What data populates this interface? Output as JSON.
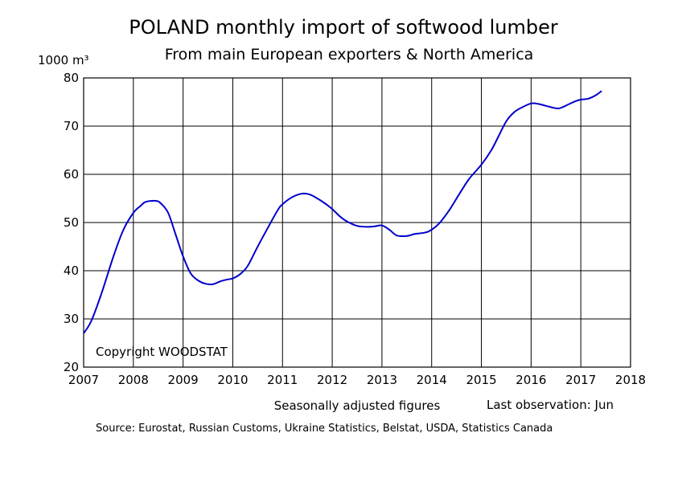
{
  "chart_data": {
    "type": "line",
    "title": "POLAND monthly import of softwood lumber",
    "subtitle": "From main European exporters & North America",
    "ylabel": "1000 m³",
    "xlabel": "",
    "xlim": [
      2007,
      2018
    ],
    "ylim": [
      20,
      80
    ],
    "x_ticks": [
      "2007",
      "2008",
      "2009",
      "2010",
      "2011",
      "2012",
      "2013",
      "2014",
      "2015",
      "2016",
      "2017",
      "2018"
    ],
    "y_ticks": [
      "20",
      "30",
      "40",
      "50",
      "60",
      "70",
      "80"
    ],
    "grid": true,
    "line_color": "#0000cc",
    "series": [
      {
        "x": [
          2007.0,
          2007.15,
          2007.35,
          2007.6,
          2007.8,
          2008.0,
          2008.15,
          2008.25,
          2008.45,
          2008.55,
          2008.7,
          2008.85,
          2009.0,
          2009.15,
          2009.3,
          2009.45,
          2009.6,
          2009.75,
          2009.9,
          2010.0,
          2010.15,
          2010.3,
          2010.5,
          2010.7,
          2010.9,
          2011.0,
          2011.2,
          2011.4,
          2011.55,
          2011.7,
          2011.85,
          2012.0,
          2012.15,
          2012.3,
          2012.5,
          2012.7,
          2012.85,
          2013.0,
          2013.15,
          2013.3,
          2013.5,
          2013.65,
          2013.8,
          2013.95,
          2014.15,
          2014.35,
          2014.55,
          2014.75,
          2015.0,
          2015.2,
          2015.35,
          2015.5,
          2015.65,
          2015.8,
          2016.0,
          2016.15,
          2016.3,
          2016.5,
          2016.6,
          2016.75,
          2016.9,
          2017.0,
          2017.15,
          2017.3,
          2017.42
        ],
        "y": [
          27.0,
          29.5,
          35.0,
          43.0,
          48.5,
          52.0,
          53.5,
          54.3,
          54.5,
          54.0,
          52.0,
          47.5,
          43.0,
          39.5,
          38.0,
          37.3,
          37.2,
          37.8,
          38.2,
          38.4,
          39.3,
          41.0,
          45.0,
          48.8,
          52.5,
          53.8,
          55.3,
          56.0,
          55.8,
          55.0,
          54.0,
          52.8,
          51.3,
          50.2,
          49.3,
          49.1,
          49.2,
          49.4,
          48.5,
          47.3,
          47.2,
          47.6,
          47.8,
          48.2,
          49.8,
          52.5,
          55.8,
          59.0,
          62.0,
          65.0,
          68.0,
          71.0,
          72.8,
          73.8,
          74.7,
          74.6,
          74.2,
          73.7,
          73.8,
          74.5,
          75.2,
          75.5,
          75.7,
          76.4,
          77.3
        ]
      }
    ]
  },
  "annotations": {
    "copyright": "Copyright WOODSTAT",
    "seasonal": "Seasonally adjusted figures",
    "last_observation": "Last observation: Jun",
    "source": "Source: Eurostat, Russian Customs, Ukraine Statistics, Belstat, USDA, Statistics Canada"
  }
}
